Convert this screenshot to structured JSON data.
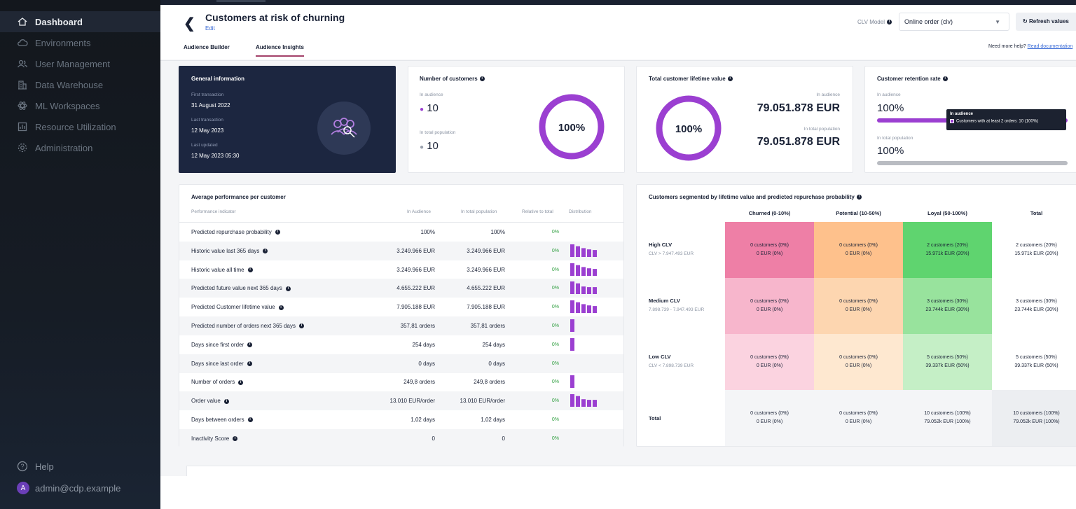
{
  "sidebar": {
    "items": [
      {
        "label": "Dashboard",
        "icon": "home-icon",
        "active": true
      },
      {
        "label": "Environments",
        "icon": "cloud-icon",
        "active": false
      },
      {
        "label": "User Management",
        "icon": "users-icon",
        "active": false
      },
      {
        "label": "Data Warehouse",
        "icon": "building-icon",
        "active": false
      },
      {
        "label": "ML Workspaces",
        "icon": "atom-icon",
        "active": false
      },
      {
        "label": "Resource Utilization",
        "icon": "chart-icon",
        "active": false
      },
      {
        "label": "Administration",
        "icon": "gear-icon",
        "active": false
      }
    ],
    "help": "Help",
    "user": "admin@cdp.example",
    "avatar_letter": "A"
  },
  "header": {
    "title": "Customers at risk of churning",
    "edit": "Edit",
    "clv_model_label": "CLV Model",
    "clv_model_value": "Online order (clv)",
    "refresh": "Refresh values",
    "tabs": [
      "Audience Builder",
      "Audience Insights"
    ],
    "active_tab": "Audience Insights",
    "help_text": "Need more help?",
    "help_link": "Read documentation"
  },
  "general": {
    "title": "General information",
    "first_label": "First transaction",
    "first_value": "31 August 2022",
    "last_label": "Last transaction",
    "last_value": "12 May 2023",
    "updated_label": "Last updated",
    "updated_value": "12 May 2023 05:30"
  },
  "customers": {
    "title": "Number of customers",
    "audience_label": "In audience",
    "audience_value": "10",
    "total_label": "In total population",
    "total_value": "10",
    "percent": "100%",
    "fraction": 1.0
  },
  "clv": {
    "title": "Total customer lifetime value",
    "percent": "100%",
    "fraction": 1.0,
    "audience_label": "In audience",
    "audience_value": "79.051.878 EUR",
    "total_label": "In total population",
    "total_value": "79.051.878 EUR"
  },
  "retention": {
    "title": "Customer retention rate",
    "audience_label": "In audience",
    "audience_value": "100%",
    "total_label": "In total population",
    "total_value": "100%",
    "tooltip_title": "In audience",
    "tooltip_text": "Customers with at least 2 orders: 10 (100%)"
  },
  "performance": {
    "title": "Average performance per customer",
    "headers": [
      "Performance indicator",
      "In Audience",
      "In total population",
      "Relative to total",
      "Distribution"
    ],
    "rows": [
      {
        "name": "Predicted repurchase probability",
        "audience": "100%",
        "total": "100%",
        "relative": "0%",
        "dist": []
      },
      {
        "name": "Historic value last 365 days",
        "audience": "3.249.966 EUR",
        "total": "3.249.966 EUR",
        "relative": "0%",
        "dist": [
          1,
          0.85,
          0.7,
          0.6,
          0.55
        ]
      },
      {
        "name": "Historic value all time",
        "audience": "3.249.966 EUR",
        "total": "3.249.966 EUR",
        "relative": "0%",
        "dist": [
          1,
          0.85,
          0.7,
          0.6,
          0.55
        ]
      },
      {
        "name": "Predicted future value next 365 days",
        "audience": "4.655.222 EUR",
        "total": "4.655.222 EUR",
        "relative": "0%",
        "dist": [
          1,
          0.85,
          0.6,
          0.55,
          0.55
        ]
      },
      {
        "name": "Predicted Customer lifetime value",
        "audience": "7.905.188 EUR",
        "total": "7.905.188 EUR",
        "relative": "0%",
        "dist": [
          1,
          0.85,
          0.7,
          0.6,
          0.55
        ]
      },
      {
        "name": "Predicted number of orders next 365 days",
        "audience": "357,81 orders",
        "total": "357,81 orders",
        "relative": "0%",
        "dist": [
          1
        ]
      },
      {
        "name": "Days since first order",
        "audience": "254 days",
        "total": "254 days",
        "relative": "0%",
        "dist": [
          1
        ]
      },
      {
        "name": "Days since last order",
        "audience": "0 days",
        "total": "0 days",
        "relative": "0%",
        "dist": []
      },
      {
        "name": "Number of orders",
        "audience": "249,8 orders",
        "total": "249,8 orders",
        "relative": "0%",
        "dist": [
          1
        ]
      },
      {
        "name": "Order value",
        "audience": "13.010 EUR/order",
        "total": "13.010 EUR/order",
        "relative": "0%",
        "dist": [
          1,
          0.85,
          0.6,
          0.55,
          0.55
        ]
      },
      {
        "name": "Days between orders",
        "audience": "1,02 days",
        "total": "1,02 days",
        "relative": "0%",
        "dist": []
      },
      {
        "name": "Inactivity Score",
        "audience": "0",
        "total": "0",
        "relative": "0%",
        "dist": []
      }
    ]
  },
  "segments": {
    "title": "Customers segmented by lifetime value and predicted repurchase probability",
    "columns": [
      "Churned (0-10%)",
      "Potential (10-50%)",
      "Loyal (50-100%)",
      "Total"
    ],
    "rows": [
      {
        "label": "High CLV",
        "sub": "CLV > 7.947.493 EUR",
        "cells": [
          [
            "0 customers (0%)",
            "0 EUR (0%)"
          ],
          [
            "0 customers (0%)",
            "0 EUR (0%)"
          ],
          [
            "2 customers (20%)",
            "15.971k EUR (20%)"
          ],
          [
            "2 customers (20%)",
            "15.971k EUR (20%)"
          ]
        ]
      },
      {
        "label": "Medium CLV",
        "sub": "7.898.739 - 7.947.493 EUR",
        "cells": [
          [
            "0 customers (0%)",
            "0 EUR (0%)"
          ],
          [
            "0 customers (0%)",
            "0 EUR (0%)"
          ],
          [
            "3 customers (30%)",
            "23.744k EUR (30%)"
          ],
          [
            "3 customers (30%)",
            "23.744k EUR (30%)"
          ]
        ]
      },
      {
        "label": "Low CLV",
        "sub": "CLV < 7.898.739 EUR",
        "cells": [
          [
            "0 customers (0%)",
            "0 EUR (0%)"
          ],
          [
            "0 customers (0%)",
            "0 EUR (0%)"
          ],
          [
            "5 customers (50%)",
            "39.337k EUR (50%)"
          ],
          [
            "5 customers (50%)",
            "39.337k EUR (50%)"
          ]
        ]
      },
      {
        "label": "Total",
        "sub": "",
        "cells": [
          [
            "0 customers (0%)",
            "0 EUR (0%)"
          ],
          [
            "0 customers (0%)",
            "0 EUR (0%)"
          ],
          [
            "10 customers (100%)",
            "79.052k EUR (100%)"
          ],
          [
            "10 customers (100%)",
            "79.052k EUR (100%)"
          ]
        ]
      }
    ],
    "colors": [
      [
        "#ee7fa6",
        "#fec18c",
        "#5fd46f",
        "#ffffff"
      ],
      [
        "#f7b6cc",
        "#fdd6b0",
        "#98e39d",
        "#ffffff"
      ],
      [
        "#fbd3e0",
        "#fee8d0",
        "#c5efc6",
        "#ffffff"
      ],
      [
        "#f4f5f7",
        "#f4f5f7",
        "#f4f5f7",
        "#eceef1"
      ]
    ]
  },
  "colors": {
    "accent": "#9b3fd1",
    "sidebar_bg": "#161c25",
    "card_dark": "#1c2640",
    "positive": "#2e9e3e",
    "tab_underline": "#a3426a"
  }
}
